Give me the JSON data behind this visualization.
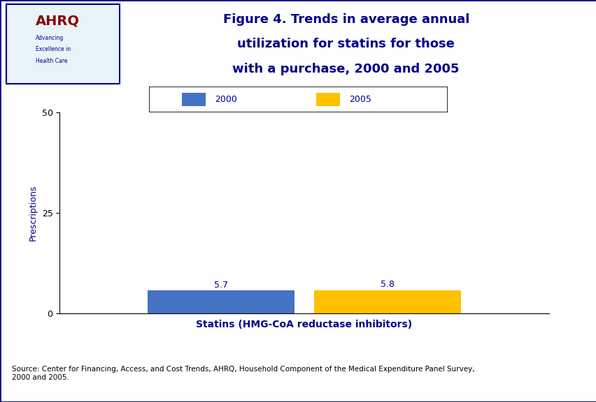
{
  "title_line1": "Figure 4. Trends in average annual",
  "title_line2": "utilization for statins for those",
  "title_line3": "with a purchase, 2000 and 2005",
  "categories": [
    "Statins (HMG-CoA reductase inhibitors)"
  ],
  "series": [
    {
      "label": "2000",
      "value": 5.7,
      "color": "#4472C4"
    },
    {
      "label": "2005",
      "value": 5.8,
      "color": "#FFC000"
    }
  ],
  "ylabel": "Prescriptions",
  "xlabel": "Statins (HMG-CoA reductase inhibitors)",
  "ylim": [
    0,
    50
  ],
  "yticks": [
    0,
    25,
    50
  ],
  "bar_width": 0.3,
  "title_color": "#00008B",
  "axis_label_color": "#00008B",
  "source_text": "Source: Center for Financing, Access, and Cost Trends, AHRQ, Household Component of the Medical Expenditure Panel Survey,\n2000 and 2005.",
  "background_color": "#FFFFFF",
  "header_bar_color": "#00008B",
  "border_color": "#00008B",
  "legend_label_color": "#00008B",
  "value_label_color": "#00008B"
}
